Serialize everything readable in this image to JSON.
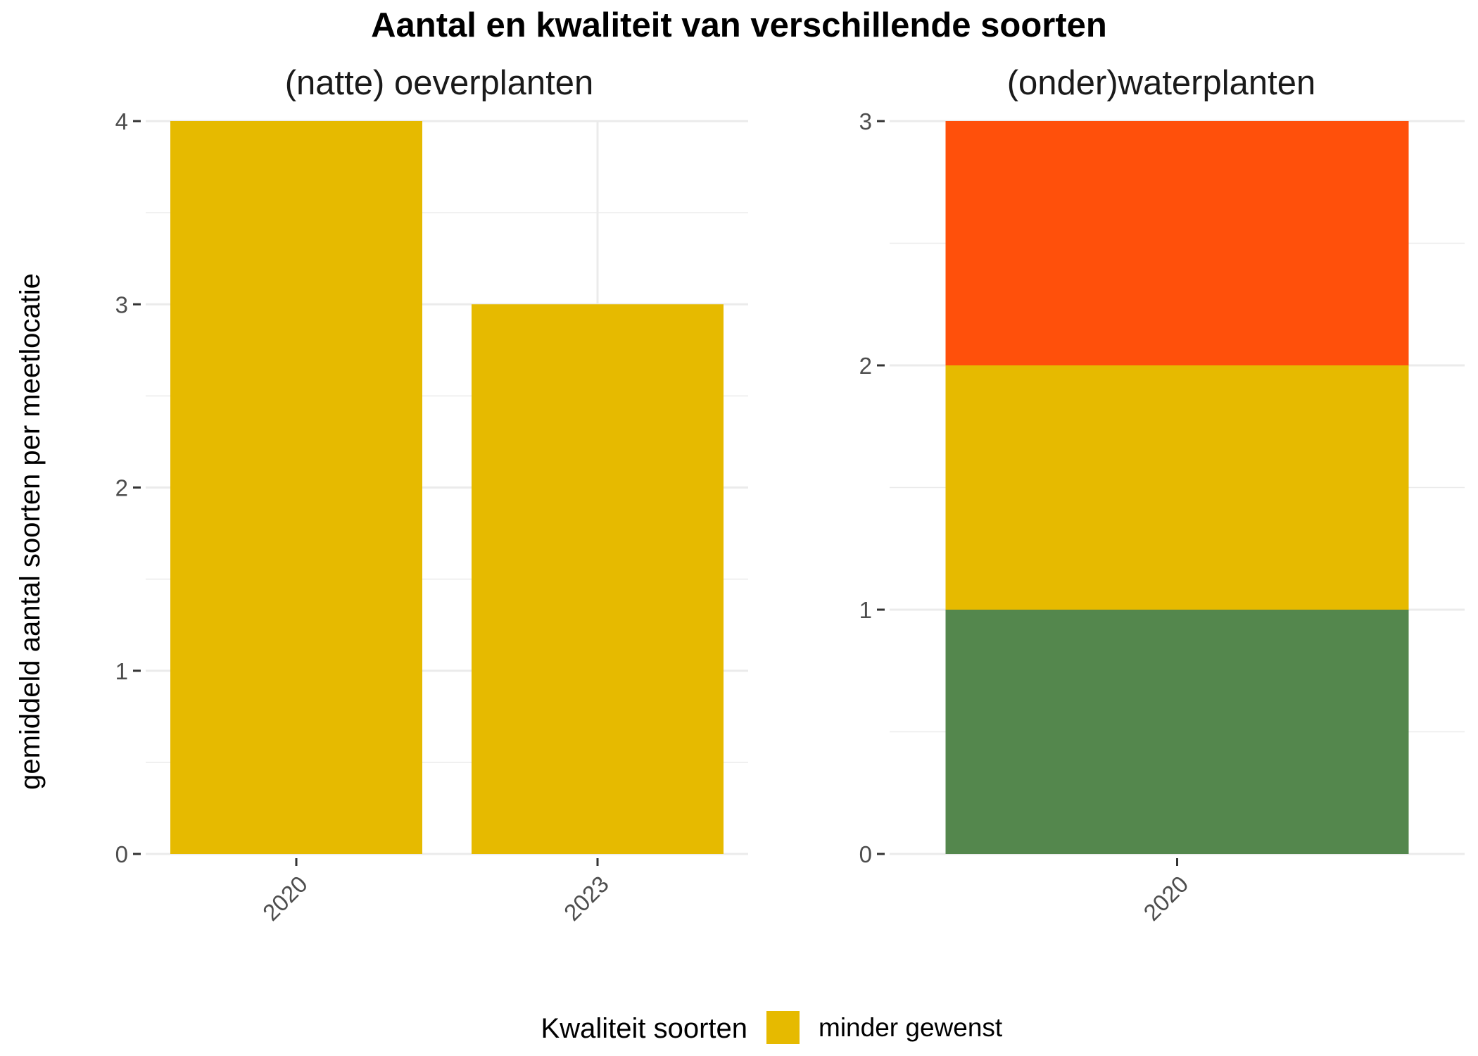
{
  "chart_data": {
    "type": "bar",
    "title": "Aantal en kwaliteit van verschillende soorten",
    "ylabel": "gemiddeld aantal soorten per meetlocatie",
    "legend": {
      "title": "Kwaliteit soorten",
      "items": [
        {
          "label": "minder gewenst",
          "color": "#E6BA00"
        }
      ],
      "placement": "bottom"
    },
    "grid": true,
    "panels": [
      {
        "title": "(natte) oeverplanten",
        "categories": [
          "2020",
          "2023"
        ],
        "ylim": [
          0,
          4
        ],
        "yticks": [
          "0",
          "1",
          "2",
          "3",
          "4"
        ],
        "stacked": false,
        "series": [
          {
            "color": "#E6BA00",
            "values": [
              4,
              3
            ]
          }
        ]
      },
      {
        "title": "(onder)waterplanten",
        "categories": [
          "2020"
        ],
        "ylim": [
          0,
          3
        ],
        "yticks": [
          "0",
          "1",
          "2",
          "3"
        ],
        "stacked": true,
        "series": [
          {
            "color": "#54874D",
            "values": [
              1
            ]
          },
          {
            "color": "#E6BA00",
            "values": [
              1
            ]
          },
          {
            "color": "#FF500B",
            "values": [
              1
            ]
          }
        ]
      }
    ]
  }
}
